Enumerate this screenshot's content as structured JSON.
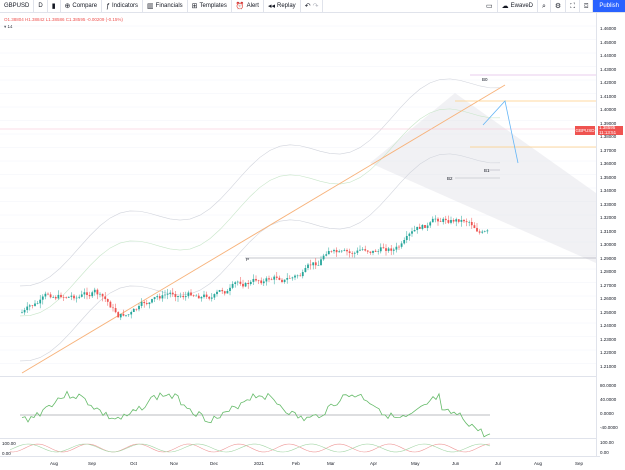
{
  "toolbar": {
    "symbol": "GBPUSD",
    "interval": "D",
    "add_symbol": "+",
    "compare": "Compare",
    "indicators": "Indicators",
    "financials": "Financials",
    "templates": "Templates",
    "alert": "Alert",
    "replay": "Replay",
    "layout_name": "EwaveD",
    "publish": "Publish"
  },
  "legend": {
    "ohlc": "O1.38804 H1.38842 L1.38586 C1.38595 -0.00209 (-0.15%)",
    "indicator": "14"
  },
  "price_badge": {
    "symbol": "GBPUSD",
    "price": "1.38595",
    "countdown": "11:13:51"
  },
  "price_axis": [
    "1.46000",
    "1.45000",
    "1.44000",
    "1.43000",
    "1.42000",
    "1.41000",
    "1.40000",
    "1.39000",
    "1.38000",
    "1.37000",
    "1.36000",
    "1.35000",
    "1.34000",
    "1.33000",
    "1.32000",
    "1.31000",
    "1.30000",
    "1.29000",
    "1.28000",
    "1.27000",
    "1.26000",
    "1.25000",
    "1.24000",
    "1.23000",
    "1.22000",
    "1.21000"
  ],
  "osc_axis": [
    "80.0000",
    "40.0000",
    "0.0000",
    "-40.0000"
  ],
  "osc2_axis": [
    "100.00",
    "0.00"
  ],
  "osc2_labels": [
    "100.00",
    "0.00"
  ],
  "time_axis": [
    "Aug",
    "Sep",
    "Oct",
    "Nov",
    "Dec",
    "2021",
    "Feb",
    "Mar",
    "Apr",
    "May",
    "Jun",
    "Jul",
    "Aug",
    "Sep"
  ],
  "annotations": [
    "B0",
    "B1",
    "B2",
    "P"
  ],
  "colors": {
    "up": "#26a69a",
    "down": "#ef5350",
    "accent": "#2962ff",
    "trend": "#f7b27a"
  }
}
